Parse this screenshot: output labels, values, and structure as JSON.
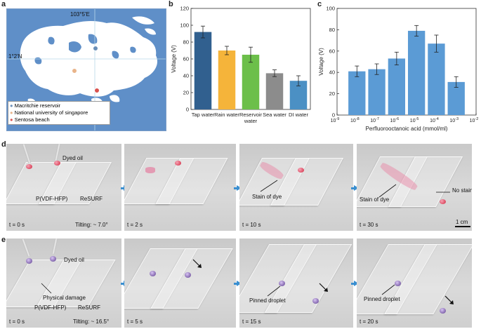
{
  "panels": {
    "a": "a",
    "b": "b",
    "c": "c",
    "d": "d",
    "e": "e"
  },
  "map": {
    "lon_label": "103°5'E",
    "lat_label": "1°2'N",
    "legend": [
      {
        "label": "Macritchie reservoir",
        "color": "#6a8fb8"
      },
      {
        "label": "National university of singapore",
        "color": "#e9b48a"
      },
      {
        "label": "Sentosa beach",
        "color": "#d9534f"
      }
    ],
    "colors": {
      "water": "#5f8fc8",
      "land": "#ffffff"
    }
  },
  "chart_b": {
    "chart_data": {
      "type": "bar",
      "categories": [
        "Tap water",
        "Rain water",
        "Reservoir water",
        "Sea water",
        "DI water"
      ],
      "category_lines": [
        [
          "Tap water"
        ],
        [
          "Rain water"
        ],
        [
          "Reservoir",
          "water"
        ],
        [
          "Sea water"
        ],
        [
          "DI water"
        ]
      ],
      "values": [
        92,
        70,
        65,
        43,
        34
      ],
      "errors": [
        7,
        5,
        9,
        4,
        6
      ],
      "colors": [
        "#31608f",
        "#f5b43a",
        "#6cbf4a",
        "#8c8c8c",
        "#4b90c4"
      ],
      "ylabel": "Voltage (V)",
      "ylim": [
        0,
        120
      ],
      "yticks": [
        "0",
        "20",
        "40",
        "60",
        "80",
        "100",
        "120"
      ]
    }
  },
  "chart_c": {
    "chart_data": {
      "type": "bar",
      "x_exponents": [
        -8,
        -7,
        -6,
        -5,
        -4,
        -3
      ],
      "values": [
        41,
        43,
        53,
        79,
        67,
        31
      ],
      "errors": [
        5,
        5,
        6,
        5,
        8,
        5
      ],
      "color": "#5b9bd5",
      "xlabel": "Perfluorooctanoic acid (mmol/ml)",
      "ylabel": "Voltage (V)",
      "ylim": [
        0,
        100
      ],
      "yticks": [
        "0",
        "20",
        "40",
        "60",
        "80",
        "100"
      ],
      "xtick_exponents": [
        "-9",
        "-8",
        "-7",
        "-6",
        "-5",
        "-4",
        "-3",
        "-2"
      ]
    }
  },
  "row_d": {
    "frames": [
      {
        "time": "t = 0 s",
        "labels": {
          "dyed_oil": "Dyed  oil",
          "left": "P(VDF-HFP)",
          "right": "ReSURF",
          "tilt": "Tilting: ~ 7.0°"
        }
      },
      {
        "time": "t = 2 s"
      },
      {
        "time": "t = 10 s",
        "labels": {
          "stain": "Stain of dye"
        }
      },
      {
        "time": "t = 30 s",
        "labels": {
          "stain": "Stain of dye",
          "no_stain": "No stain",
          "scale": "1 cm"
        }
      }
    ]
  },
  "row_e": {
    "frames": [
      {
        "time": "t = 0 s",
        "labels": {
          "dyed_oil": "Dyed oil",
          "damage": "Physical damage",
          "left": "P(VDF-HFP)",
          "right": "ReSURF",
          "tilt": "Tilting: ~ 16.5°"
        }
      },
      {
        "time": "t = 5 s"
      },
      {
        "time": "t = 15 s",
        "labels": {
          "pinned": "Pinned droplet"
        }
      },
      {
        "time": "t = 20 s",
        "labels": {
          "pinned": "Pinned droplet"
        }
      }
    ]
  }
}
